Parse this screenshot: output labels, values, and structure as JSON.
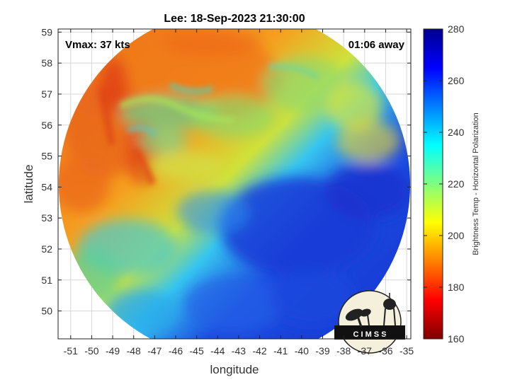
{
  "title": "Lee: 18-Sep-2023 21:30:00",
  "annotations": {
    "vmax": "Vmax: 37 kts",
    "away": "01:06 away"
  },
  "axes": {
    "xlabel": "longitude",
    "ylabel": "latitude",
    "xlim": [
      -51.6,
      -34.8
    ],
    "ylim": [
      49.1,
      59.1
    ],
    "xticks": [
      -51,
      -50,
      -49,
      -48,
      -47,
      -46,
      -45,
      -44,
      -43,
      -42,
      -41,
      -40,
      -39,
      -38,
      -37,
      -36,
      -35
    ],
    "yticks": [
      50,
      51,
      52,
      53,
      54,
      55,
      56,
      57,
      58,
      59
    ],
    "grid": true
  },
  "colorbar": {
    "label": "Brightness Temp - Horizontal Polarization",
    "range": [
      160,
      280
    ],
    "ticks": [
      160,
      180,
      200,
      220,
      240,
      260,
      280
    ],
    "colormap": "jet"
  },
  "logo": {
    "text": "C I M S S"
  },
  "colors": {
    "cold": "#1a2fd6",
    "warm": "#f08a1c",
    "ice": "#25b7f0"
  }
}
